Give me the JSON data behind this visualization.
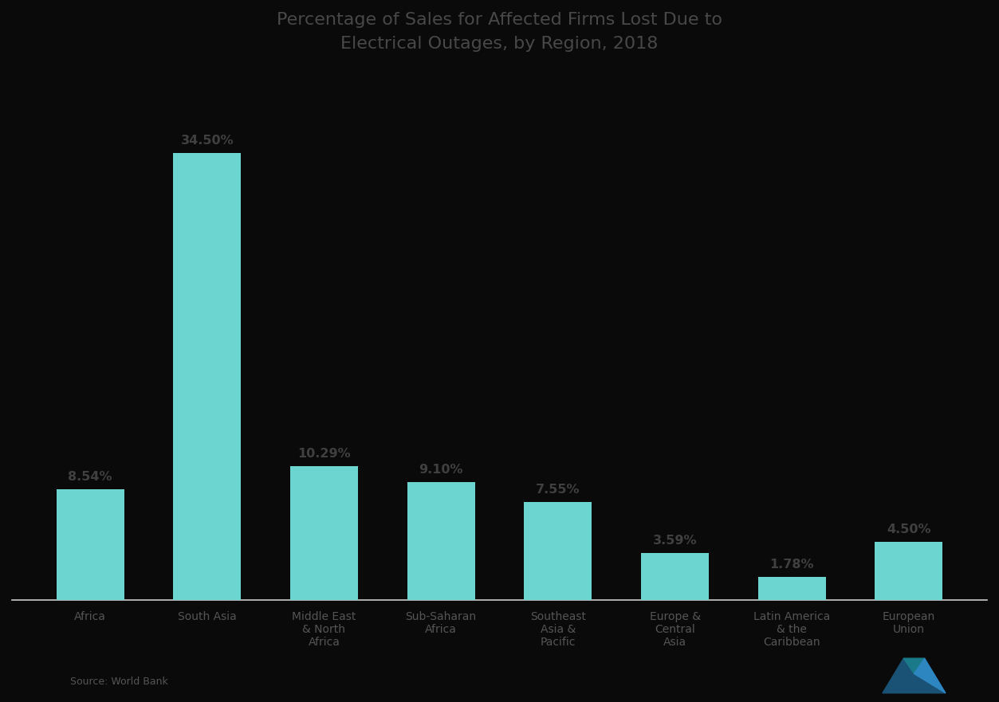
{
  "title_line1": "Percentage of Sales for Affected Firms Lost Due to",
  "title_line2": "Electrical Outages, by Region, 2018",
  "categories": [
    "Africa",
    "South Asia",
    "Middle East\n& North\nAfrica",
    "Sub-Saharan\nAfrica",
    "Southeast\nAsia &\nPacific",
    "Europe &\nCentral\nAsia",
    "Latin America\n& the\nCaribbean",
    "European\nUnion"
  ],
  "values": [
    8.54,
    34.5,
    10.29,
    9.1,
    7.55,
    3.59,
    1.78,
    4.5
  ],
  "labels": [
    "8.54%",
    "34.50%",
    "10.29%",
    "9.10%",
    "7.55%",
    "3.59%",
    "1.78%",
    "4.50%"
  ],
  "bar_color": "#6dd5d0",
  "background_color": "#0a0a0a",
  "title_color": "#484848",
  "label_color": "#404040",
  "tick_label_color": "#555555",
  "axis_line_color": "#cccccc",
  "source_text": "Source: World Bank",
  "source_color": "#555555",
  "ylim": [
    0,
    40
  ]
}
